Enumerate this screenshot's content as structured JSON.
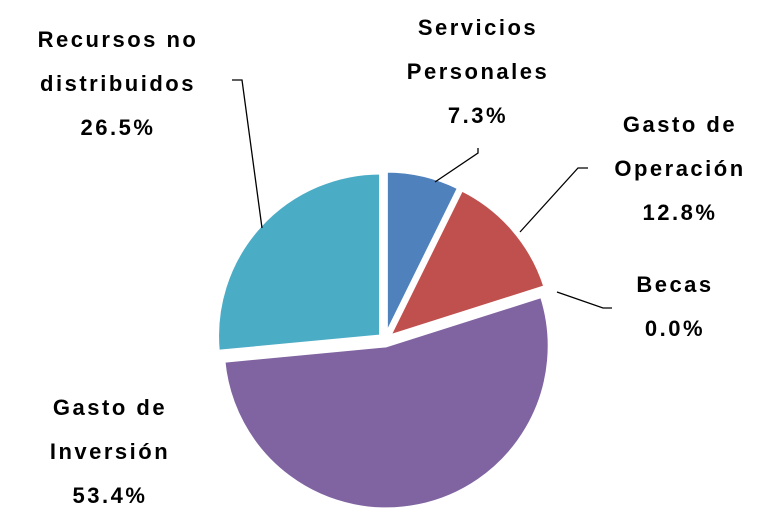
{
  "chart_data": {
    "type": "pie",
    "categories": [
      "Servicios Personales",
      "Gasto de Operación",
      "Becas",
      "Gasto de Inversión",
      "Recursos no distribuidos"
    ],
    "values": [
      7.3,
      12.8,
      0.0,
      53.4,
      26.5
    ],
    "value_labels": [
      "7.3%",
      "12.8%",
      "0.0%",
      "53.4%",
      "26.5%"
    ],
    "colors": [
      "#4f81bd",
      "#c0504d",
      "#9bbb59",
      "#8064a2",
      "#4bacc6"
    ]
  }
}
